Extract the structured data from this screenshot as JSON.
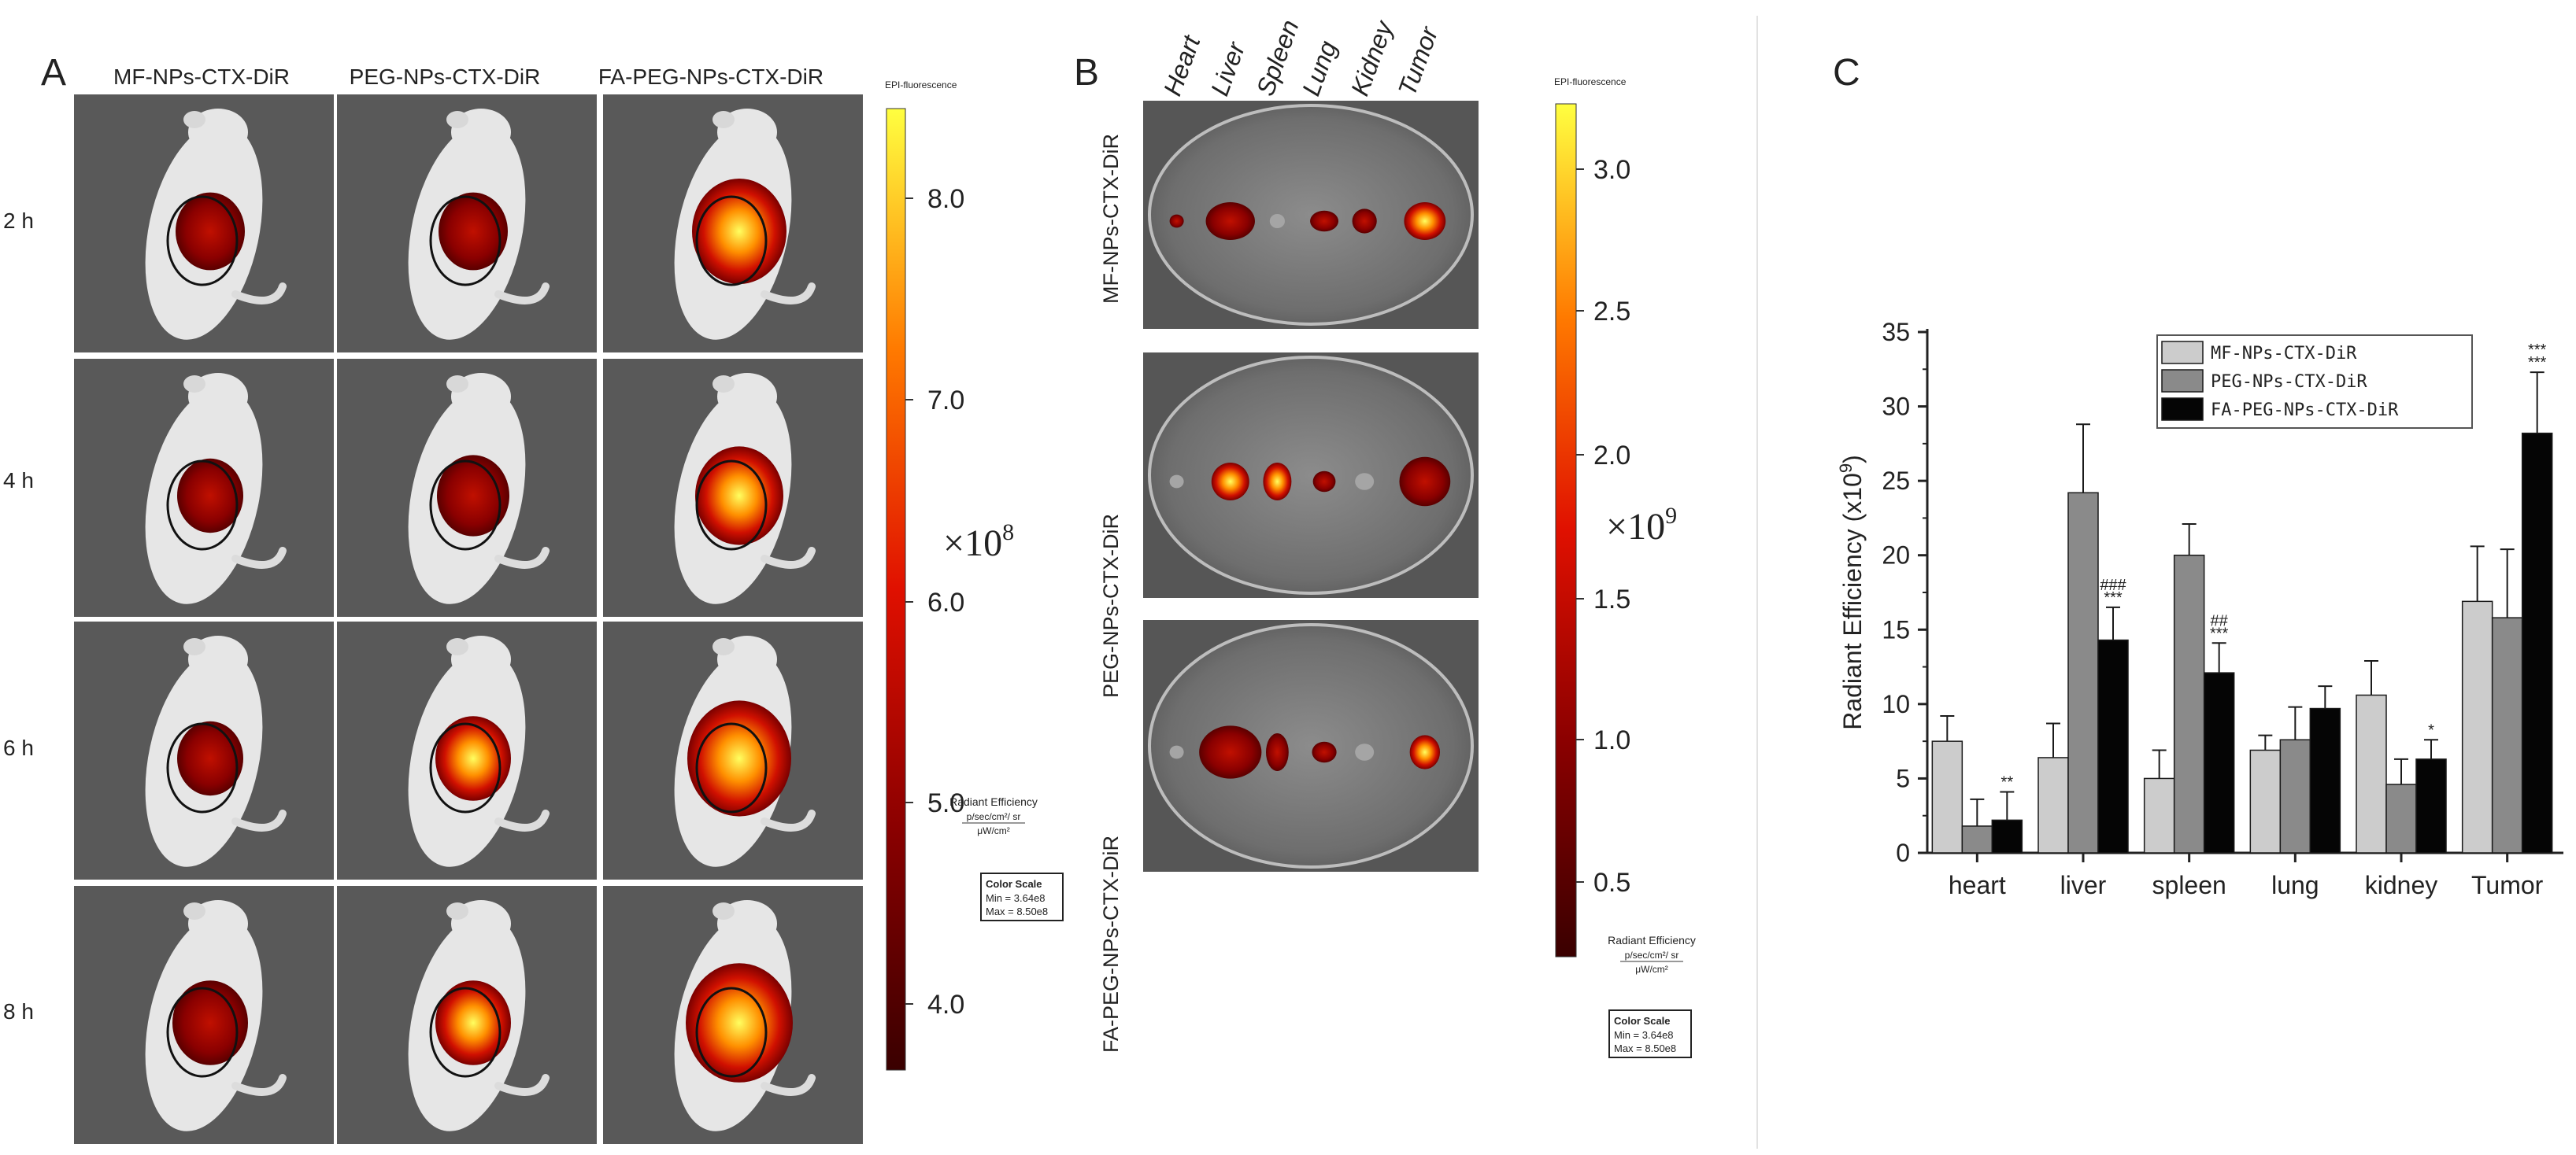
{
  "panel_a": {
    "label": "A",
    "columns": [
      "MF-NPs-CTX-DiR",
      "PEG-NPs-CTX-DiR",
      "FA-PEG-NPs-CTX-DiR"
    ],
    "rows": [
      "2 h",
      "4 h",
      "6 h",
      "8 h"
    ],
    "colorbar": {
      "title": "EPI-fluorescence",
      "ticks": [
        "8.0",
        "7.0",
        "6.0",
        "5.0",
        "4.0"
      ],
      "exponent": "×10",
      "exponent_power": "8",
      "unit_label": "Radiant Efficiency",
      "unit_numerator": "p/sec/cm²/ sr",
      "unit_denominator": "μW/cm²",
      "scale_title": "Color Scale",
      "scale_min": "Min = 3.64e8",
      "scale_max": "Max = 8.50e8"
    }
  },
  "panel_b": {
    "label": "B",
    "organs": [
      "Heart",
      "Liver",
      "Spleen",
      "Lung",
      "Kidney",
      "Tumor"
    ],
    "rows": [
      "MF-NPs-CTX-DiR",
      "PEG-NPs-CTX-DiR",
      "FA-PEG-NPs-CTX-DiR"
    ],
    "colorbar": {
      "title": "EPI-fluorescence",
      "ticks": [
        "3.0",
        "2.5",
        "2.0",
        "1.5",
        "1.0",
        "0.5"
      ],
      "exponent": "×10",
      "exponent_power": "9",
      "unit_label": "Radiant Efficiency",
      "unit_numerator": "p/sec/cm²/ sr",
      "unit_denominator": "μW/cm²",
      "scale_title": "Color Scale",
      "scale_min": "Min = 3.64e8",
      "scale_max": "Max = 8.50e8"
    }
  },
  "panel_c": {
    "label": "C"
  },
  "chart_data": {
    "type": "bar",
    "title": "",
    "xlabel": "",
    "ylabel": "Radiant Efficiency (x10",
    "ylabel_power": "9",
    "ylabel_close": ")",
    "ylim": [
      0,
      35
    ],
    "yticks": [
      0,
      5,
      10,
      15,
      20,
      25,
      30,
      35
    ],
    "categories": [
      "heart",
      "liver",
      "spleen",
      "lung",
      "kidney",
      "Tumor"
    ],
    "series": [
      {
        "name": "MF-NPs-CTX-DiR",
        "color": "#cccccc",
        "values": [
          7.5,
          6.4,
          5.0,
          6.9,
          10.6,
          16.9
        ],
        "errors": [
          1.7,
          2.3,
          1.9,
          1.0,
          2.3,
          3.7
        ]
      },
      {
        "name": "PEG-NPs-CTX-DiR",
        "color": "#8a8a8a",
        "values": [
          1.8,
          24.2,
          20.0,
          7.6,
          4.6,
          15.8
        ],
        "errors": [
          1.8,
          4.6,
          2.1,
          2.2,
          1.7,
          4.6
        ]
      },
      {
        "name": "FA-PEG-NPs-CTX-DiR",
        "color": "#050505",
        "values": [
          2.2,
          14.3,
          12.1,
          9.7,
          6.3,
          28.2
        ],
        "errors": [
          1.9,
          2.2,
          2.0,
          1.5,
          1.3,
          4.1
        ]
      }
    ],
    "annotations": [
      {
        "category": "heart",
        "series": 2,
        "lines": [
          "**"
        ]
      },
      {
        "category": "liver",
        "series": 2,
        "lines": [
          "###",
          "***"
        ]
      },
      {
        "category": "spleen",
        "series": 2,
        "lines": [
          "##",
          "***"
        ]
      },
      {
        "category": "kidney",
        "series": 2,
        "lines": [
          "*"
        ]
      },
      {
        "category": "Tumor",
        "series": 2,
        "lines": [
          "***",
          "***"
        ]
      }
    ],
    "legend_position": "top-right"
  }
}
